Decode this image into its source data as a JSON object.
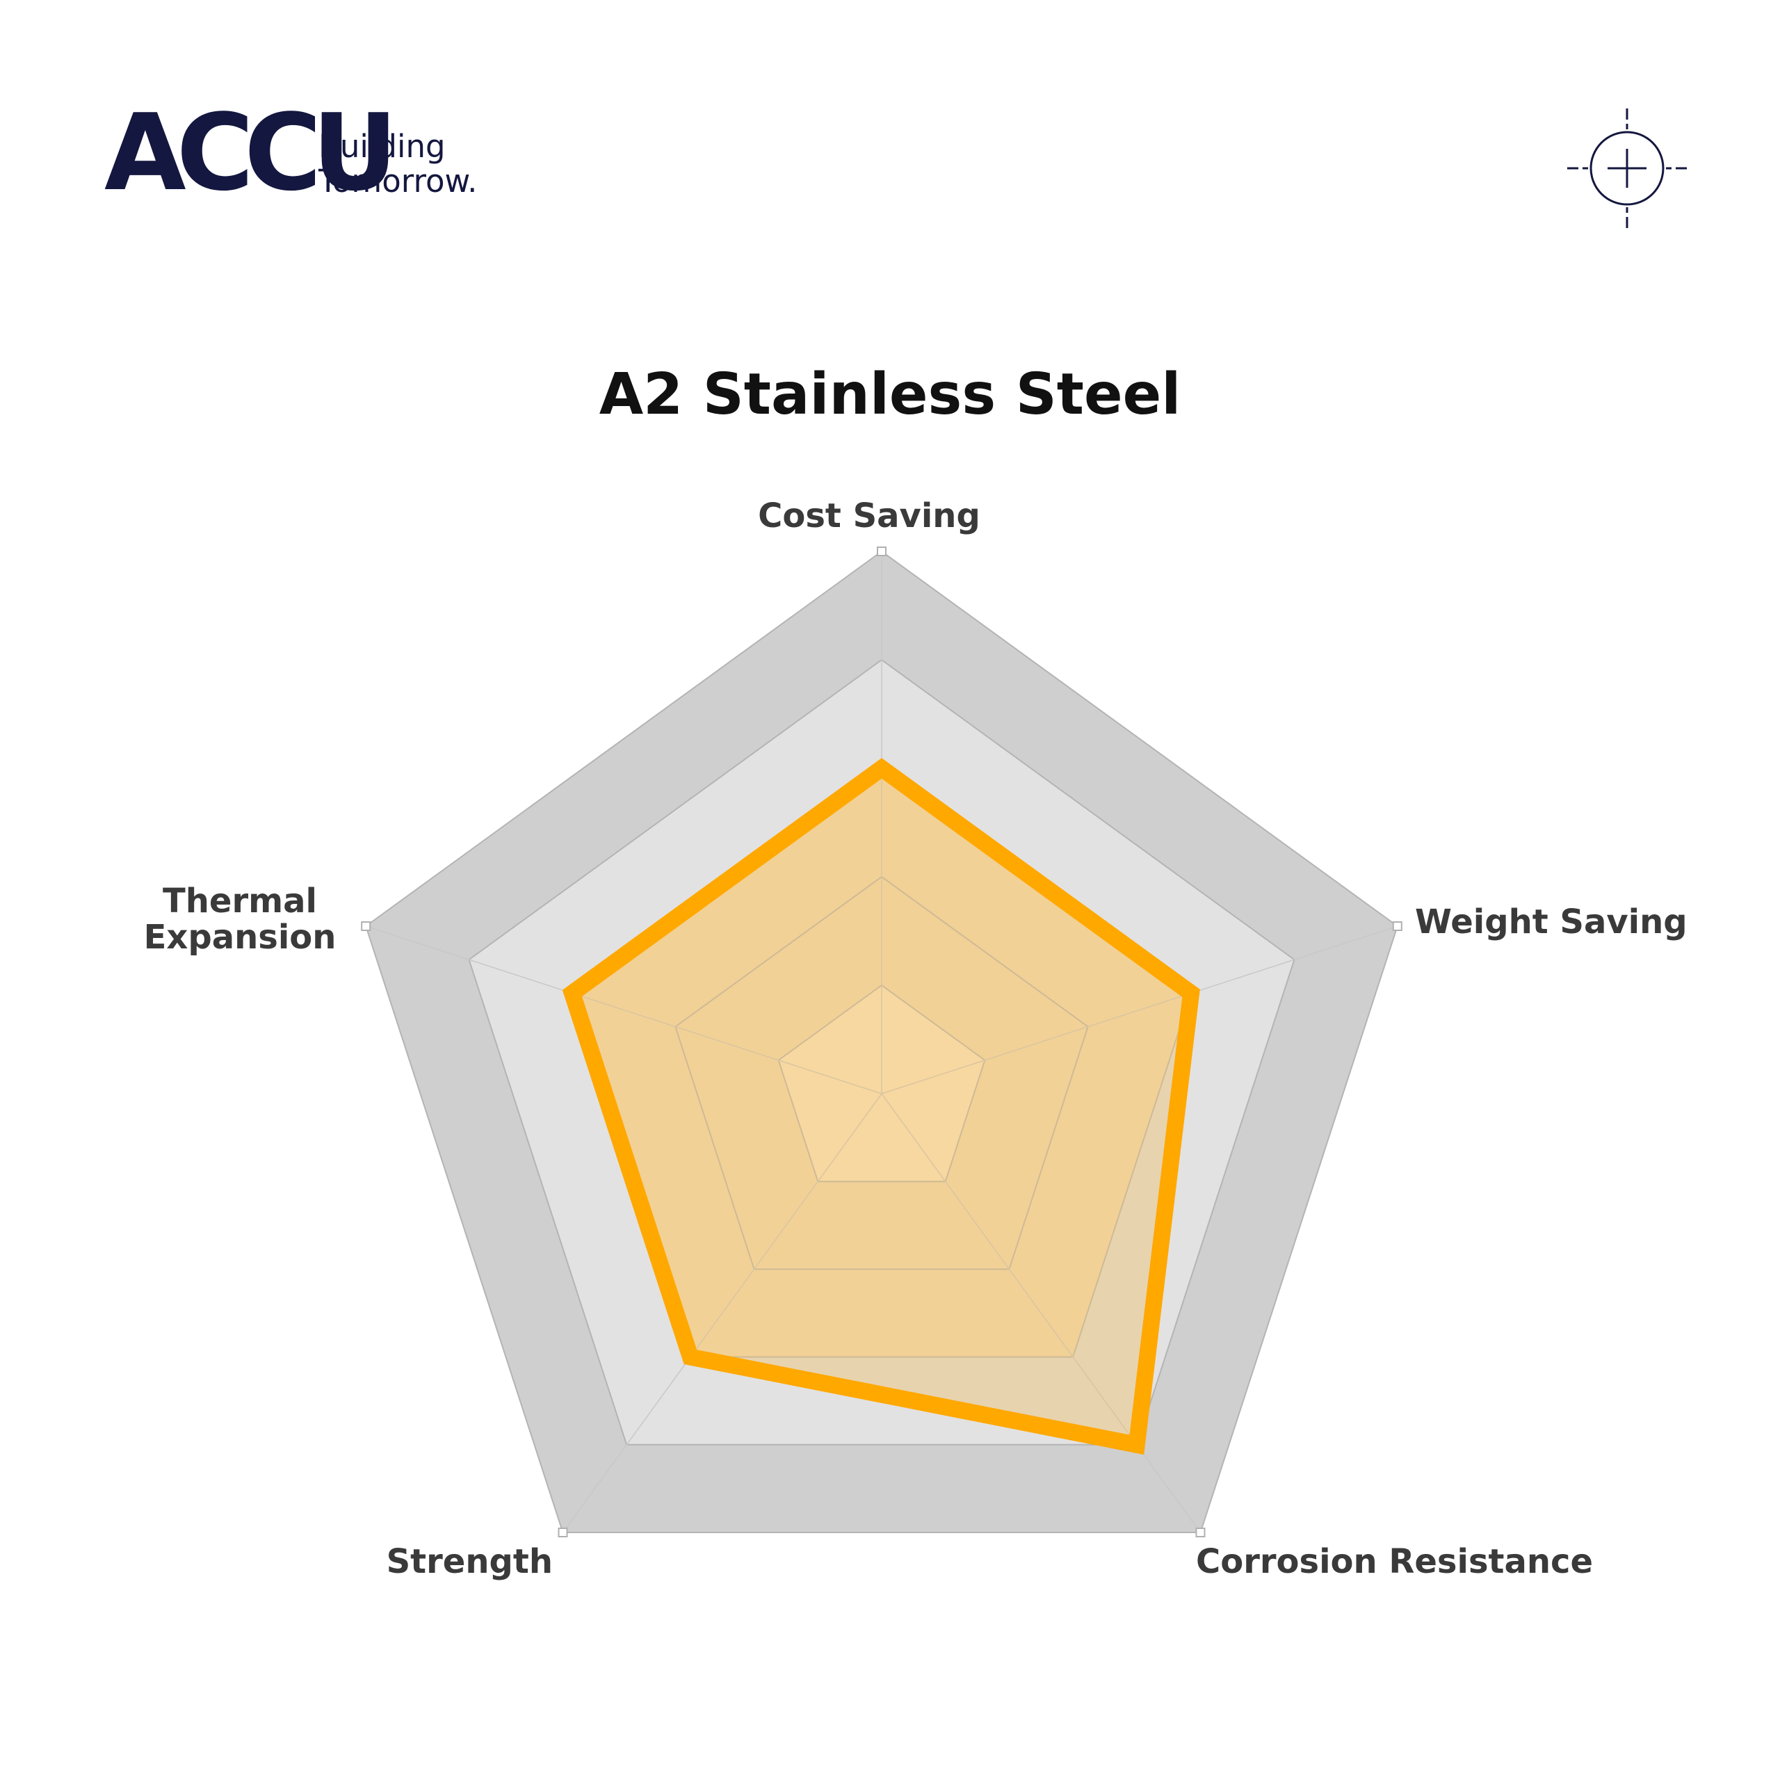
{
  "brand": {
    "name": "ACCU",
    "tagline_line1": "Building",
    "tagline_line2": "Tomorrow."
  },
  "icons": {
    "crosshair": "crosshair-icon"
  },
  "chart_data": {
    "type": "radar",
    "title": "A2 Stainless Steel",
    "axes": [
      "Cost Saving",
      "Weight Saving",
      "Corrosion Resistance",
      "Strength",
      "Thermal Expansion"
    ],
    "rmax": 5,
    "levels": [
      1,
      2,
      3,
      4,
      5
    ],
    "series": [
      {
        "values": [
          3,
          3,
          4,
          3,
          3
        ],
        "color": "#ffa800",
        "fill": "#f0c070"
      }
    ],
    "grid_colors": {
      "outer_band": "#cfcfcf",
      "middle_band": "#e2e2e2",
      "inner_band": "#f2dfb4",
      "center": "#fdebc6"
    }
  }
}
